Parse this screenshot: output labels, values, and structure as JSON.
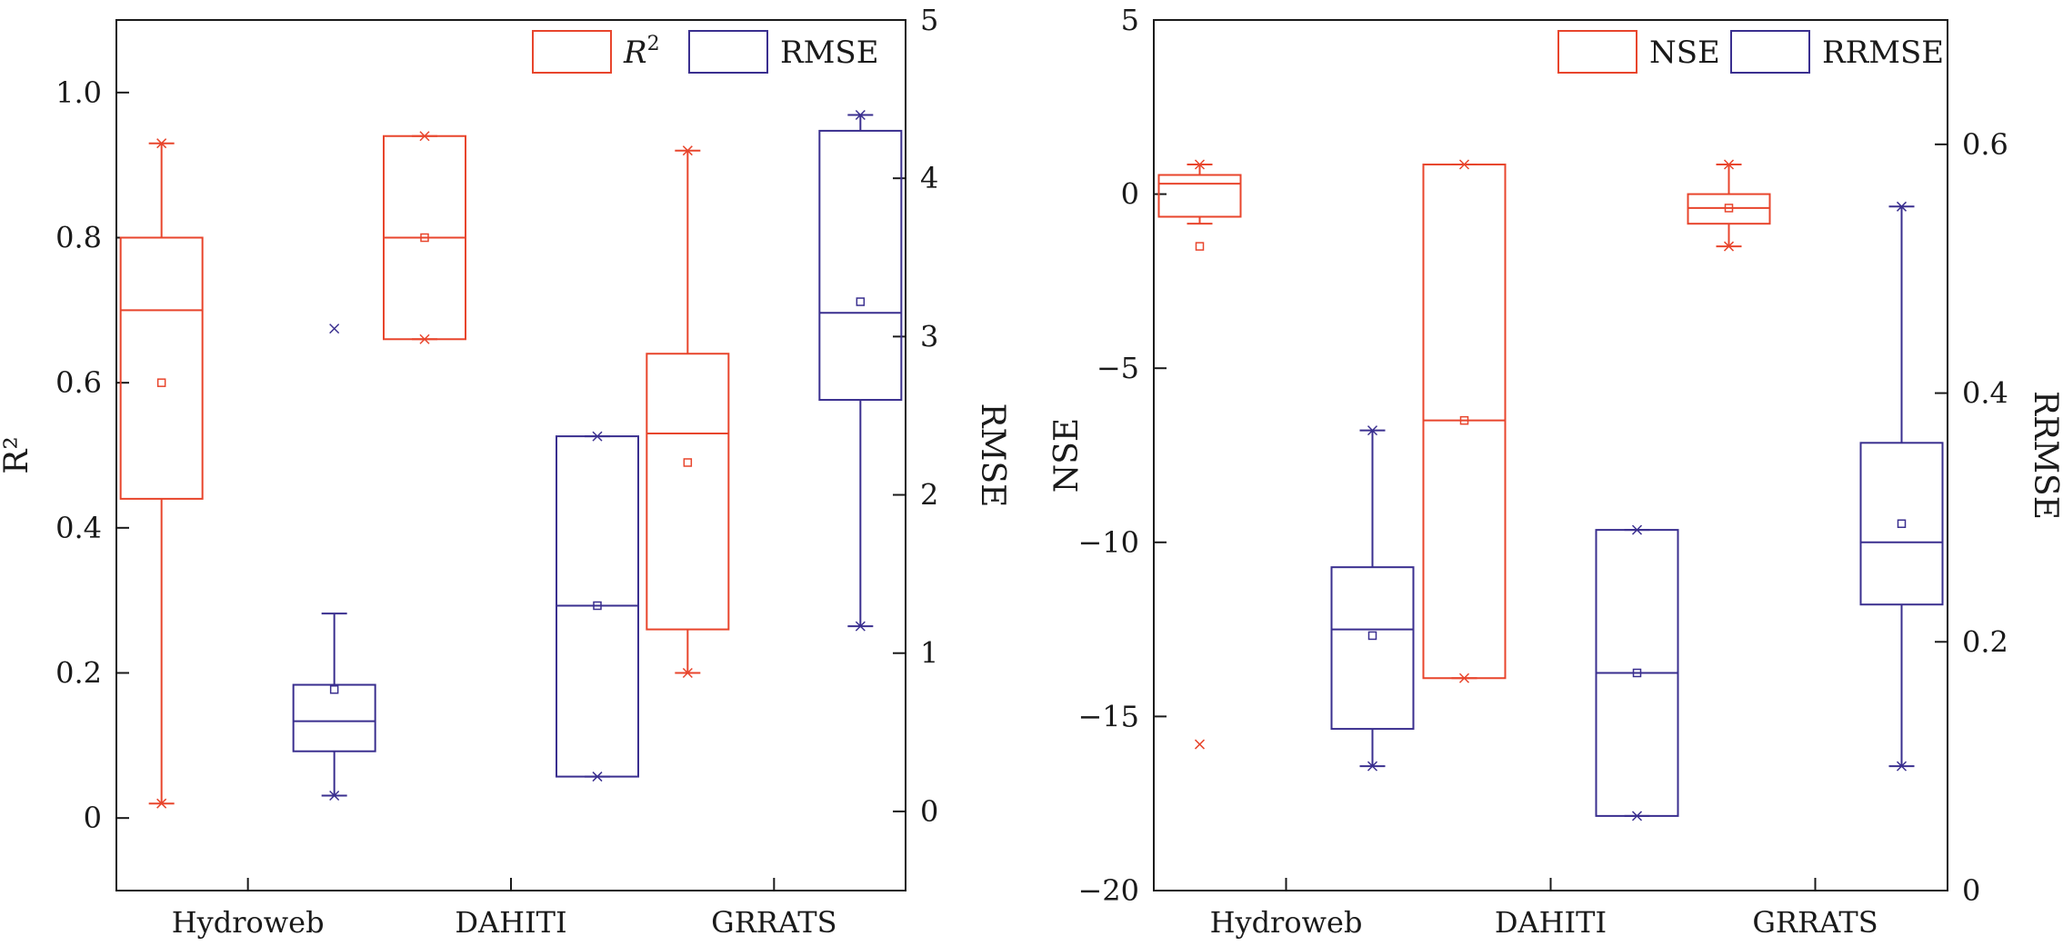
{
  "colors": {
    "series_a": "#e8452c",
    "series_b": "#3a2f8f",
    "axis": "#1a1a1a"
  },
  "chart_data": [
    {
      "type": "box",
      "categories": [
        "Hydroweb",
        "DAHITI",
        "GRRATS"
      ],
      "ylabel_left": "R²",
      "ylabel_right": "RMSE",
      "ylim_left": [
        -0.1,
        1.1
      ],
      "ylim_right": [
        -0.5,
        5
      ],
      "yticks_left": [
        0,
        0.2,
        0.4,
        0.6,
        0.8,
        1.0
      ],
      "yticks_left_labels": [
        "0",
        "0.2",
        "0.4",
        "0.6",
        "0.8",
        "1.0"
      ],
      "yticks_right": [
        0,
        1,
        2,
        3,
        4,
        5
      ],
      "yticks_right_labels": [
        "0",
        "1",
        "2",
        "3",
        "4",
        "5"
      ],
      "legend_position": "top-right",
      "series": [
        {
          "name": "R",
          "name_sup": "2",
          "axis": "left",
          "color": "#e8452c",
          "boxes": [
            {
              "category": "Hydroweb",
              "q1": 0.44,
              "median": 0.7,
              "q3": 0.8,
              "whisker_low": 0.02,
              "whisker_high": 0.93,
              "mean": 0.6,
              "min": 0.02,
              "max": 0.93,
              "outliers": []
            },
            {
              "category": "DAHITI",
              "q1": 0.66,
              "median": 0.8,
              "q3": 0.94,
              "whisker_low": 0.66,
              "whisker_high": 0.94,
              "mean": 0.8,
              "min": 0.66,
              "max": 0.94,
              "outliers": []
            },
            {
              "category": "GRRATS",
              "q1": 0.26,
              "median": 0.53,
              "q3": 0.64,
              "whisker_low": 0.2,
              "whisker_high": 0.92,
              "mean": 0.49,
              "min": 0.2,
              "max": 0.92,
              "outliers": []
            }
          ]
        },
        {
          "name": "RMSE",
          "axis": "right",
          "color": "#3a2f8f",
          "boxes": [
            {
              "category": "Hydroweb",
              "q1": 0.38,
              "median": 0.57,
              "q3": 0.8,
              "whisker_low": 0.1,
              "whisker_high": 1.25,
              "mean": 0.77,
              "min": 0.1,
              "max": 3.05,
              "outliers": [
                3.05
              ]
            },
            {
              "category": "DAHITI",
              "q1": 0.22,
              "median": 1.3,
              "q3": 2.37,
              "whisker_low": 0.22,
              "whisker_high": 2.37,
              "mean": 1.3,
              "min": 0.22,
              "max": 2.37,
              "outliers": []
            },
            {
              "category": "GRRATS",
              "q1": 2.6,
              "median": 3.15,
              "q3": 4.3,
              "whisker_low": 1.17,
              "whisker_high": 4.4,
              "mean": 3.22,
              "min": 1.17,
              "max": 4.4,
              "outliers": []
            }
          ]
        }
      ]
    },
    {
      "type": "box",
      "categories": [
        "Hydroweb",
        "DAHITI",
        "GRRATS"
      ],
      "ylabel_left": "NSE",
      "ylabel_right": "RRMSE",
      "ylim_left": [
        -20,
        5
      ],
      "ylim_right": [
        0,
        0.7
      ],
      "yticks_left": [
        -20,
        -15,
        -10,
        -5,
        0,
        5
      ],
      "yticks_left_labels": [
        "−20",
        "−15",
        "−10",
        "−5",
        "0",
        "5"
      ],
      "yticks_right": [
        0,
        0.2,
        0.4,
        0.6
      ],
      "yticks_right_labels": [
        "0",
        "0.2",
        "0.4",
        "0.6"
      ],
      "legend_position": "top-right",
      "series": [
        {
          "name": "NSE",
          "axis": "left",
          "color": "#e8452c",
          "boxes": [
            {
              "category": "Hydroweb",
              "q1": -0.65,
              "median": 0.3,
              "q3": 0.55,
              "whisker_low": -0.85,
              "whisker_high": 0.85,
              "mean": -1.5,
              "min": -15.8,
              "max": 0.85,
              "outliers": [
                -15.8
              ]
            },
            {
              "category": "DAHITI",
              "q1": -13.9,
              "median": -6.5,
              "q3": 0.85,
              "whisker_low": -13.9,
              "whisker_high": 0.85,
              "mean": -6.5,
              "min": -13.9,
              "max": 0.85,
              "outliers": []
            },
            {
              "category": "GRRATS",
              "q1": -0.85,
              "median": -0.4,
              "q3": 0.0,
              "whisker_low": -1.5,
              "whisker_high": 0.85,
              "mean": -0.4,
              "min": -1.5,
              "max": 0.85,
              "outliers": []
            }
          ]
        },
        {
          "name": "RRMSE",
          "axis": "right",
          "color": "#3a2f8f",
          "boxes": [
            {
              "category": "Hydroweb",
              "q1": 0.13,
              "median": 0.21,
              "q3": 0.26,
              "whisker_low": 0.1,
              "whisker_high": 0.37,
              "mean": 0.205,
              "min": 0.1,
              "max": 0.37,
              "outliers": []
            },
            {
              "category": "DAHITI",
              "q1": 0.06,
              "median": 0.175,
              "q3": 0.29,
              "whisker_low": 0.06,
              "whisker_high": 0.29,
              "mean": 0.175,
              "min": 0.06,
              "max": 0.29,
              "outliers": []
            },
            {
              "category": "GRRATS",
              "q1": 0.23,
              "median": 0.28,
              "q3": 0.36,
              "whisker_low": 0.1,
              "whisker_high": 0.55,
              "mean": 0.295,
              "min": 0.1,
              "max": 0.55,
              "outliers": []
            }
          ]
        }
      ]
    }
  ]
}
